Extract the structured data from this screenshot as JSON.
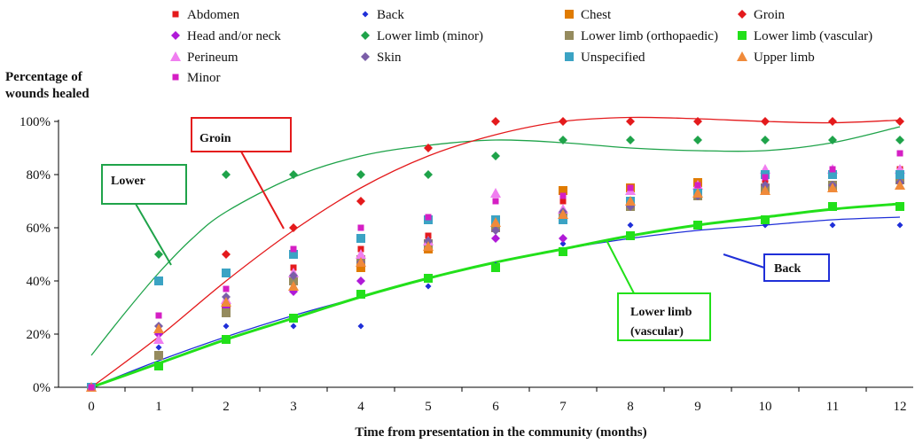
{
  "chart_data": {
    "type": "scatter",
    "title": "",
    "ylabel_lines": [
      "Percentage of",
      "wounds healed"
    ],
    "xlabel": "Time from presentation in the community (months)",
    "x_ticks": [
      "0",
      "1",
      "2",
      "3",
      "4",
      "5",
      "6",
      "7",
      "8",
      "9",
      "10",
      "11",
      "12"
    ],
    "y_ticks": [
      "0%",
      "20%",
      "40%",
      "60%",
      "80%",
      "100%"
    ],
    "xlim": [
      0,
      12
    ],
    "ylim": [
      0,
      100
    ],
    "grid": false,
    "legend_position": "top",
    "x": [
      0,
      1,
      2,
      3,
      4,
      5,
      6,
      7,
      8,
      9,
      10,
      11,
      12
    ],
    "series": [
      {
        "name": "Abdomen",
        "color": "#e41a1c",
        "marker": "square-small",
        "values": [
          0,
          12,
          32,
          45,
          52,
          57,
          63,
          70,
          75,
          77,
          78,
          80,
          82
        ]
      },
      {
        "name": "Back",
        "color": "#1f2fd8",
        "marker": "diamond-small",
        "values": [
          0,
          15,
          23,
          23,
          23,
          38,
          46,
          54,
          61,
          61,
          61,
          61,
          61
        ]
      },
      {
        "name": "Chest",
        "color": "#e07b00",
        "marker": "square",
        "values": [
          0,
          12,
          30,
          40,
          45,
          52,
          62,
          74,
          75,
          77,
          74,
          75,
          78
        ]
      },
      {
        "name": "Groin",
        "color": "#e41a1c",
        "marker": "diamond",
        "values": [
          0,
          20,
          50,
          60,
          70,
          90,
          100,
          100,
          100,
          100,
          100,
          100,
          100
        ]
      },
      {
        "name": "Head and/or neck",
        "color": "#b01ad8",
        "marker": "diamond",
        "values": [
          0,
          20,
          30,
          36,
          40,
          55,
          56,
          56,
          68,
          72,
          75,
          76,
          77
        ]
      },
      {
        "name": "Lower limb (minor)",
        "color": "#1fa34a",
        "marker": "diamond",
        "values": [
          0,
          50,
          80,
          80,
          80,
          80,
          87,
          93,
          93,
          93,
          93,
          93,
          93
        ]
      },
      {
        "name": "Lower limb (orthopaedic)",
        "color": "#958b5e",
        "marker": "square",
        "values": [
          0,
          12,
          28,
          40,
          48,
          54,
          60,
          64,
          68,
          72,
          75,
          76,
          78
        ]
      },
      {
        "name": "Lower limb (vascular)",
        "color": "#22e01a",
        "marker": "square",
        "values": [
          0,
          8,
          18,
          26,
          35,
          41,
          45,
          51,
          57,
          61,
          63,
          68,
          68
        ]
      },
      {
        "name": "Perineum",
        "color": "#f07ef0",
        "marker": "triangle",
        "values": [
          0,
          18,
          33,
          43,
          50,
          55,
          73,
          67,
          74,
          76,
          82,
          82,
          82
        ]
      },
      {
        "name": "Skin",
        "color": "#7b5ea8",
        "marker": "diamond",
        "values": [
          0,
          23,
          34,
          42,
          47,
          55,
          59,
          66,
          68,
          72,
          76,
          76,
          77
        ]
      },
      {
        "name": "Unspecified",
        "color": "#3ba3c4",
        "marker": "square",
        "values": [
          0,
          40,
          43,
          50,
          56,
          63,
          63,
          63,
          70,
          73,
          80,
          80,
          80
        ]
      },
      {
        "name": "Upper limb",
        "color": "#f08a3a",
        "marker": "triangle",
        "values": [
          0,
          22,
          32,
          38,
          47,
          53,
          62,
          65,
          70,
          73,
          74,
          75,
          76
        ]
      },
      {
        "name": "Minor",
        "color": "#d51fc4",
        "marker": "square-small",
        "values": [
          0,
          27,
          37,
          52,
          60,
          64,
          70,
          72,
          75,
          76,
          79,
          82,
          88
        ]
      }
    ],
    "trendlines": [
      {
        "series": "Lower limb (minor)",
        "color": "#1fa34a",
        "width": 1.3,
        "points": [
          [
            0,
            12
          ],
          [
            0.5,
            28
          ],
          [
            1,
            43
          ],
          [
            1.5,
            56
          ],
          [
            2,
            66
          ],
          [
            3,
            79
          ],
          [
            4,
            87
          ],
          [
            5,
            91
          ],
          [
            6,
            93
          ],
          [
            7,
            92
          ],
          [
            8,
            90
          ],
          [
            9,
            89
          ],
          [
            10,
            89
          ],
          [
            11,
            92
          ],
          [
            12,
            98
          ]
        ]
      },
      {
        "series": "Groin",
        "color": "#e41a1c",
        "width": 1.3,
        "points": [
          [
            0,
            0
          ],
          [
            1,
            19
          ],
          [
            2,
            40
          ],
          [
            3,
            59
          ],
          [
            4,
            75
          ],
          [
            5,
            87
          ],
          [
            6,
            95
          ],
          [
            7,
            100
          ],
          [
            8,
            101.5
          ],
          [
            9,
            101
          ],
          [
            10,
            100
          ],
          [
            11,
            99.5
          ],
          [
            12,
            100.5
          ]
        ]
      },
      {
        "series": "Back",
        "color": "#1f2fd8",
        "width": 1.3,
        "points": [
          [
            0,
            0
          ],
          [
            1,
            10
          ],
          [
            2,
            19
          ],
          [
            3,
            27
          ],
          [
            4,
            34
          ],
          [
            5,
            41
          ],
          [
            6,
            47
          ],
          [
            7,
            52
          ],
          [
            8,
            56
          ],
          [
            9,
            59
          ],
          [
            10,
            61
          ],
          [
            11,
            63
          ],
          [
            12,
            64
          ]
        ]
      },
      {
        "series": "Lower limb (vascular)",
        "color": "#22e01a",
        "width": 3,
        "points": [
          [
            0,
            0
          ],
          [
            1,
            9
          ],
          [
            2,
            18
          ],
          [
            3,
            26
          ],
          [
            4,
            34
          ],
          [
            5,
            41
          ],
          [
            6,
            47
          ],
          [
            7,
            52
          ],
          [
            8,
            57
          ],
          [
            9,
            61
          ],
          [
            10,
            64
          ],
          [
            11,
            67
          ],
          [
            12,
            69
          ]
        ]
      }
    ],
    "annotations": [
      {
        "lines": [
          "Groin"
        ],
        "color": "#e41a1c"
      },
      {
        "lines": [
          "Lower"
        ],
        "color": "#1fa34a"
      },
      {
        "lines": [
          "Back"
        ],
        "color": "#1f2fd8"
      },
      {
        "lines": [
          "Lower limb",
          "(vascular)"
        ],
        "color": "#22e01a"
      }
    ]
  }
}
